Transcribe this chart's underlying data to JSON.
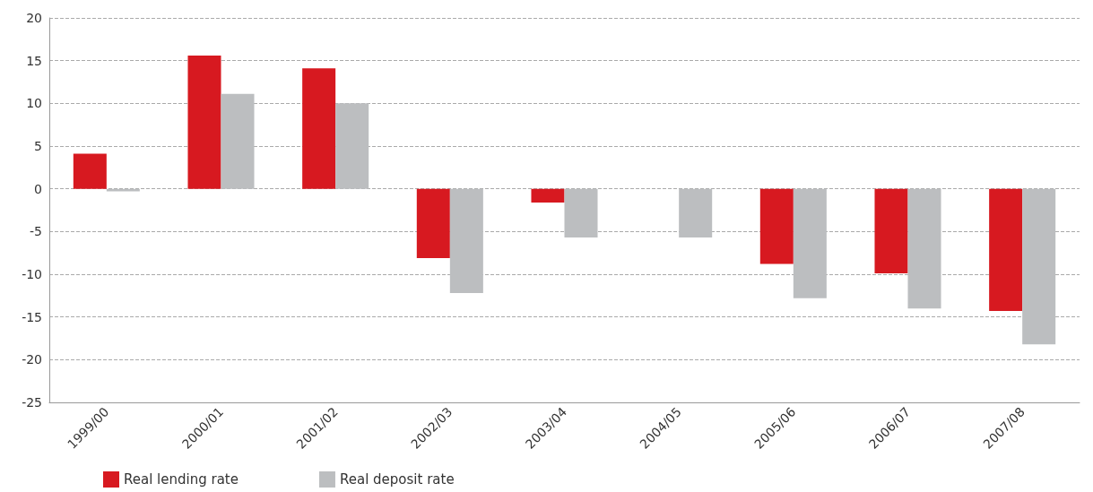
{
  "chart_data": {
    "type": "bar",
    "categories": [
      "1999/00",
      "2000/01",
      "2001/02",
      "2002/03",
      "2003/04",
      "2004/05",
      "2005/06",
      "2006/07",
      "2007/08"
    ],
    "series": [
      {
        "name": "Real lending rate",
        "color": "#d71920",
        "values": [
          4.1,
          15.6,
          14.1,
          -8.1,
          -1.6,
          null,
          -8.8,
          -9.9,
          -14.3
        ]
      },
      {
        "name": "Real deposit rate",
        "color": "#bcbec0",
        "values": [
          -0.3,
          11.1,
          10.0,
          -12.2,
          -5.7,
          -5.7,
          -12.8,
          -14.0,
          -18.2
        ]
      }
    ],
    "ylim": [
      -25,
      20
    ],
    "yticks": [
      -25,
      -20,
      -15,
      -10,
      -5,
      0,
      5,
      10,
      15,
      20
    ],
    "grid": "y",
    "legend": "bottom left"
  }
}
